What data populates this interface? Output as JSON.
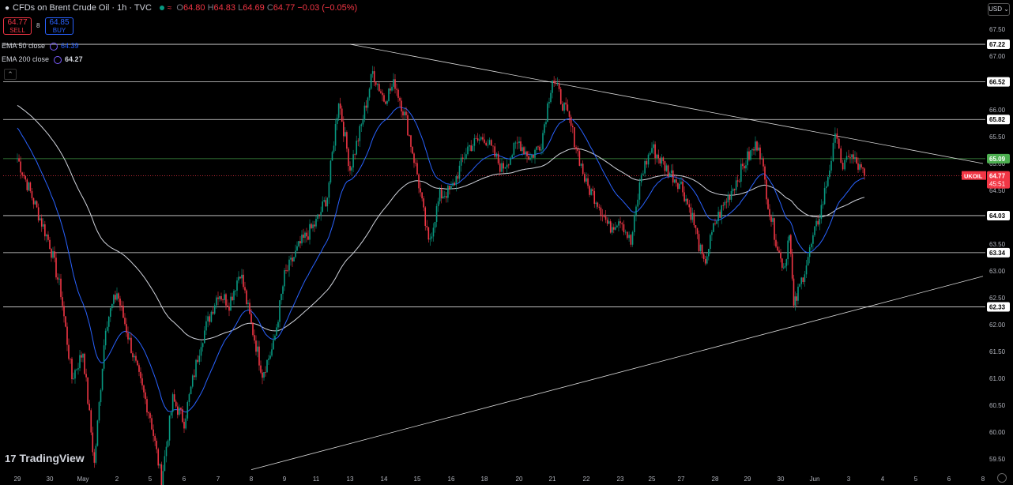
{
  "header": {
    "title": "CFDs on Brent Crude Oil · 1h · TVC",
    "ohlc": {
      "o": "64.80",
      "h": "64.83",
      "l": "64.69",
      "c": "64.77",
      "chg": "−0.03 (−0.05%)"
    },
    "o_label": "O",
    "h_label": "H",
    "l_label": "L",
    "c_label": "C"
  },
  "trade": {
    "sell_price": "64.77",
    "sell_label": "SELL",
    "buy_price": "64.85",
    "buy_label": "BUY",
    "spread": "8"
  },
  "indicators": [
    {
      "label": "EMA 50 close",
      "value": "64.39"
    },
    {
      "label": "EMA 200 close",
      "value": "64.27"
    }
  ],
  "currency": "USD",
  "brand": "TradingView",
  "colors": {
    "bg": "#000000",
    "up": "#089981",
    "down": "#f23645",
    "ema50": "#2962ff",
    "ema200": "#d1d4dc",
    "level": "#ffffff",
    "green_level": "#4caf50"
  },
  "chart_data": {
    "type": "candlestick",
    "symbol": "UKOIL",
    "timeframe": "1h",
    "ylim": [
      59.25,
      67.75
    ],
    "y_ticks": [
      59.5,
      60.0,
      60.5,
      61.0,
      61.5,
      62.0,
      62.5,
      63.0,
      63.5,
      64.0,
      64.5,
      65.0,
      65.5,
      66.0,
      66.5,
      67.0,
      67.5
    ],
    "x_tick_labels": [
      "29",
      "30",
      "May",
      "2",
      "5",
      "6",
      "7",
      "8",
      "9",
      "11",
      "13",
      "14",
      "15",
      "16",
      "18",
      "20",
      "21",
      "22",
      "23",
      "25",
      "27",
      "28",
      "29",
      "30",
      "Jun",
      "3",
      "4",
      "5",
      "6",
      "8"
    ],
    "levels": [
      {
        "price": 67.22,
        "label": "67.22",
        "color": "white"
      },
      {
        "price": 66.52,
        "label": "66.52",
        "color": "white"
      },
      {
        "price": 65.82,
        "label": "65.82",
        "color": "white"
      },
      {
        "price": 65.09,
        "label": "65.09",
        "color": "green"
      },
      {
        "price": 64.03,
        "label": "64.03",
        "color": "white"
      },
      {
        "price": 63.34,
        "label": "63.34",
        "color": "white"
      },
      {
        "price": 62.33,
        "label": "62.33",
        "color": "white"
      }
    ],
    "trendlines": [
      {
        "name": "descending-resistance",
        "from": [
          "May 13",
          67.22
        ],
        "to": [
          "Jun 8",
          65.0
        ]
      },
      {
        "name": "ascending-support",
        "from": [
          "May 8",
          59.3
        ],
        "to": [
          "Jun 8",
          62.9
        ]
      }
    ],
    "last_price": {
      "symbol": "UKOIL",
      "price": "64.77",
      "countdown": "45:51"
    },
    "series_path": [
      [
        "Apr 29",
        65.1
      ],
      [
        "Apr 29",
        64.3
      ],
      [
        "Apr 30",
        63.5
      ],
      [
        "Apr 30",
        62.6
      ],
      [
        "Apr 30",
        61.0
      ],
      [
        "May 1",
        61.5
      ],
      [
        "May 1",
        59.4
      ],
      [
        "May 1",
        62.0
      ],
      [
        "May 2",
        62.6
      ],
      [
        "May 2",
        61.8
      ],
      [
        "May 2",
        61.0
      ],
      [
        "May 5",
        60.3
      ],
      [
        "May 5",
        59.1
      ],
      [
        "May 5",
        60.6
      ],
      [
        "May 6",
        60.2
      ],
      [
        "May 6",
        61.7
      ],
      [
        "May 7",
        62.6
      ],
      [
        "May 7",
        62.4
      ],
      [
        "May 7",
        63.0
      ],
      [
        "May 8",
        62.0
      ],
      [
        "May 8",
        61.1
      ],
      [
        "May 8",
        61.6
      ],
      [
        "May 9",
        62.9
      ],
      [
        "May 9",
        63.5
      ],
      [
        "May 11",
        63.9
      ],
      [
        "May 11",
        64.4
      ],
      [
        "May 11",
        66.2
      ],
      [
        "May 13",
        64.9
      ],
      [
        "May 13",
        65.7
      ],
      [
        "May 13",
        66.7
      ],
      [
        "May 14",
        66.2
      ],
      [
        "May 14",
        66.5
      ],
      [
        "May 14",
        65.8
      ],
      [
        "May 15",
        64.8
      ],
      [
        "May 15",
        63.5
      ],
      [
        "May 15",
        64.4
      ],
      [
        "May 16",
        64.5
      ],
      [
        "May 16",
        65.3
      ],
      [
        "May 18",
        65.5
      ],
      [
        "May 18",
        64.9
      ],
      [
        "May 20",
        65.4
      ],
      [
        "May 20",
        65.1
      ],
      [
        "May 20",
        65.4
      ],
      [
        "May 21",
        66.6
      ],
      [
        "May 21",
        65.8
      ],
      [
        "May 22",
        64.6
      ],
      [
        "May 22",
        64.3
      ],
      [
        "May 22",
        63.8
      ],
      [
        "May 23",
        64.0
      ],
      [
        "May 23",
        63.5
      ],
      [
        "May 23",
        64.8
      ],
      [
        "May 25",
        65.3
      ],
      [
        "May 25",
        64.9
      ],
      [
        "May 27",
        64.6
      ],
      [
        "May 27",
        64.0
      ],
      [
        "May 27",
        63.1
      ],
      [
        "May 28",
        63.9
      ],
      [
        "May 28",
        64.5
      ],
      [
        "May 29",
        65.1
      ],
      [
        "May 29",
        65.4
      ],
      [
        "May 29",
        64.1
      ],
      [
        "May 30",
        63.2
      ],
      [
        "May 30",
        63.1
      ],
      [
        "May 30",
        63.8
      ],
      [
        "May 30",
        62.3
      ],
      [
        "May 31",
        62.6
      ],
      [
        "Jun 1",
        63.7
      ],
      [
        "Jun 1",
        64.3
      ],
      [
        "Jun 2",
        65.1
      ],
      [
        "Jun 2",
        65.6
      ],
      [
        "Jun 2",
        64.8
      ],
      [
        "Jun 3",
        65.2
      ],
      [
        "Jun 3",
        64.77
      ]
    ]
  }
}
